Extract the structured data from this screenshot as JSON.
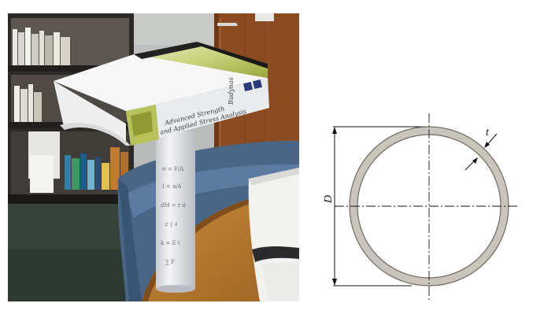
{
  "photo": {
    "book_title_line1": "Advanced Strength",
    "book_title_line2": "and Applied Stress Analysis",
    "book_author": "Budynas"
  },
  "diagram": {
    "diameter_label": "D",
    "thickness_label": "t"
  },
  "colors": {
    "tube_wall_fill": "#c9c5bc",
    "tube_wall_stroke": "#6e6a62",
    "book_cover_green": "#b7c35a",
    "chair_blue": "#4a6687",
    "table_wood": "#b8792b",
    "door_wood": "#8b4a20",
    "carpet": "#35433b"
  }
}
